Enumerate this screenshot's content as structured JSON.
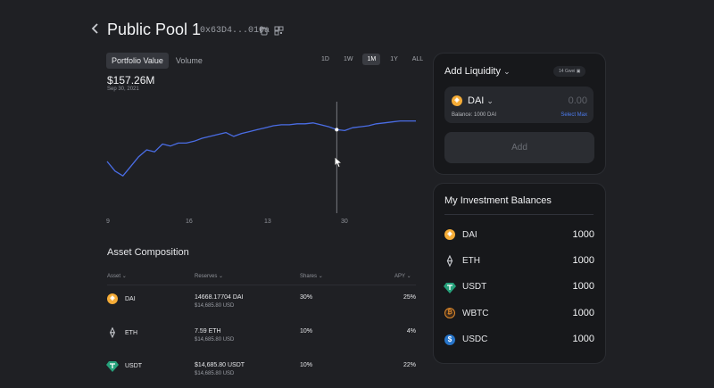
{
  "header": {
    "back_icon": "chevron-left-icon",
    "title": "Public Pool 1",
    "address": "0x63D4...010a",
    "copy_icon": "copy-icon",
    "qr_icon": "qr-code-icon"
  },
  "chart_tabs": [
    "Portfolio Value",
    "Volume"
  ],
  "ranges": [
    "1D",
    "1W",
    "1M",
    "1Y",
    "ALL"
  ],
  "active_range": "1M",
  "portfolio": {
    "value": "$157.26M",
    "date": "Sep 30, 2021"
  },
  "chart_data": {
    "type": "line",
    "x_ticks": [
      "9",
      "16",
      "13",
      "30"
    ],
    "values": [
      38,
      28,
      23,
      33,
      43,
      50,
      48,
      56,
      54,
      57,
      57,
      59,
      62,
      64,
      66,
      68,
      64,
      67,
      69,
      71,
      73,
      75,
      76,
      76,
      77,
      77,
      78,
      76,
      74,
      71,
      70,
      73,
      74,
      75,
      77,
      78,
      79,
      80,
      80,
      80
    ],
    "hover_index": 29,
    "color": "#4a6de5"
  },
  "asset_composition": {
    "title": "Asset Composition",
    "columns": [
      "Asset",
      "Reserves",
      "Shares",
      "APY"
    ],
    "rows": [
      {
        "asset": "DAI",
        "icon": "dai-icon",
        "reserve": "14668.17704 DAI",
        "reserve_usd": "$14,685.80 USD",
        "share": "30%",
        "apy": "25%"
      },
      {
        "asset": "ETH",
        "icon": "eth-icon",
        "reserve": "7.59 ETH",
        "reserve_usd": "$14,685.80 USD",
        "share": "10%",
        "apy": "4%"
      },
      {
        "asset": "USDT",
        "icon": "usdt-icon",
        "reserve": "$14,685.80 USDT",
        "reserve_usd": "$14,685.80 USD",
        "share": "10%",
        "apy": "22%"
      }
    ]
  },
  "add_liquidity": {
    "title": "Add Liquidity",
    "gas": "14 Gwei",
    "token": "DAI",
    "amount_placeholder": "0.00",
    "balance_label": "Balance: 1000 DAI",
    "select_max": "Select Max",
    "add_button": "Add"
  },
  "investment_balances": {
    "title": "My Investment Balances",
    "items": [
      {
        "token": "DAI",
        "icon": "dai-icon",
        "value": "1000"
      },
      {
        "token": "ETH",
        "icon": "eth-icon",
        "value": "1000"
      },
      {
        "token": "USDT",
        "icon": "usdt-icon",
        "value": "1000"
      },
      {
        "token": "WBTC",
        "icon": "wbtc-icon",
        "value": "1000"
      },
      {
        "token": "USDC",
        "icon": "usdc-icon",
        "value": "1000"
      }
    ]
  },
  "colors": {
    "accent": "#4a6de5",
    "link": "#4c7cf0",
    "dai": "#f5ac37",
    "usdt": "#26a17b",
    "wbtc": "#e0892a",
    "usdc": "#2775ca"
  }
}
